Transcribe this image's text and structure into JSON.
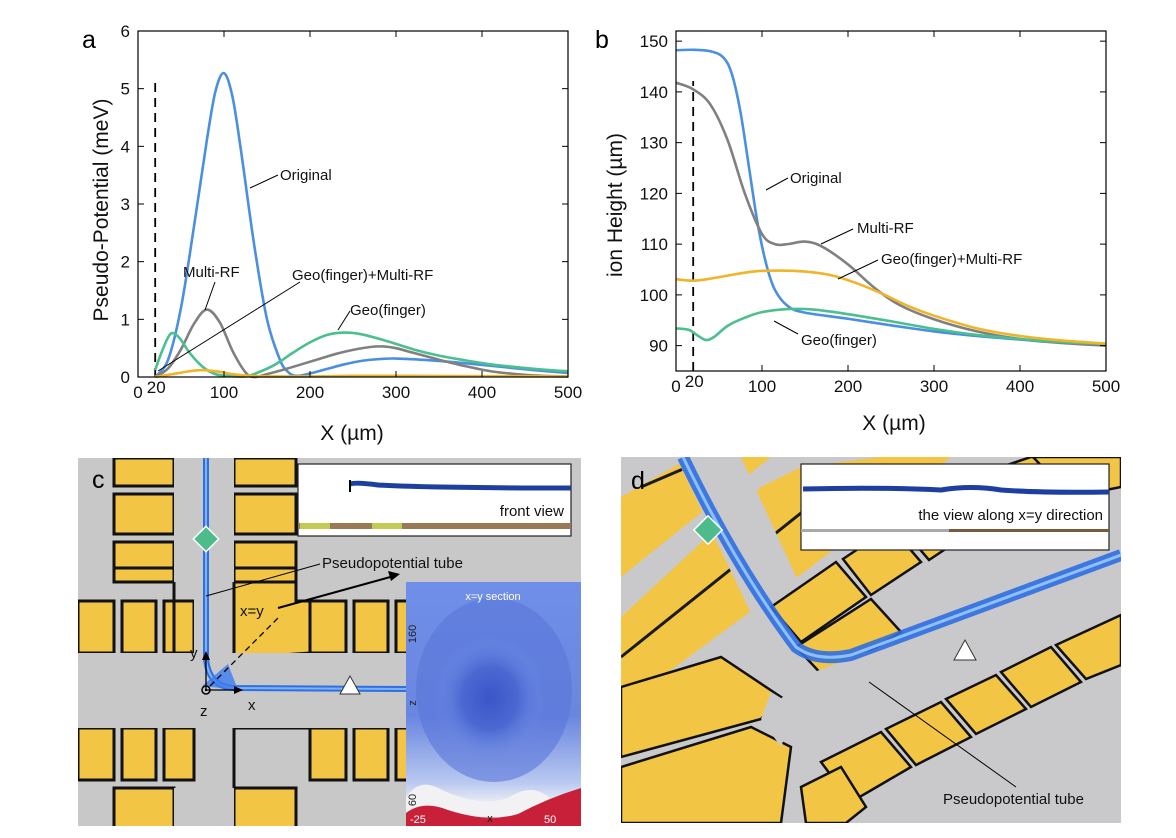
{
  "panel_a": {
    "label": "a",
    "chart_data": {
      "type": "line",
      "xlabel": "X (µm)",
      "ylabel": "Pseudo-Potential (meV)",
      "xlim": [
        0,
        500
      ],
      "ylim": [
        0,
        6
      ],
      "xticks": [
        0,
        100,
        200,
        300,
        400,
        500
      ],
      "yticks": [
        0,
        1,
        2,
        3,
        4,
        5,
        6
      ],
      "marker_x": 20,
      "marker_label": "20",
      "series": [
        {
          "name": "Original",
          "color": "#4a8fe0",
          "points": [
            [
              20,
              0
            ],
            [
              35,
              0.3
            ],
            [
              50,
              1.2
            ],
            [
              65,
              2.6
            ],
            [
              80,
              4.1
            ],
            [
              90,
              4.95
            ],
            [
              100,
              5.27
            ],
            [
              110,
              4.85
            ],
            [
              120,
              3.9
            ],
            [
              135,
              2.3
            ],
            [
              150,
              1.0
            ],
            [
              165,
              0.3
            ],
            [
              175,
              0.08
            ],
            [
              185,
              0.02
            ],
            [
              200,
              0.06
            ],
            [
              220,
              0.14
            ],
            [
              240,
              0.22
            ],
            [
              260,
              0.28
            ],
            [
              280,
              0.31
            ],
            [
              300,
              0.32
            ],
            [
              340,
              0.29
            ],
            [
              380,
              0.24
            ],
            [
              420,
              0.18
            ],
            [
              460,
              0.12
            ],
            [
              500,
              0.07
            ]
          ]
        },
        {
          "name": "Multi-RF",
          "color": "#808080",
          "points": [
            [
              20,
              0
            ],
            [
              35,
              0.15
            ],
            [
              50,
              0.48
            ],
            [
              65,
              0.92
            ],
            [
              80,
              1.17
            ],
            [
              95,
              0.95
            ],
            [
              110,
              0.45
            ],
            [
              125,
              0.08
            ],
            [
              135,
              0
            ],
            [
              150,
              0.05
            ],
            [
              170,
              0.13
            ],
            [
              190,
              0.22
            ],
            [
              210,
              0.31
            ],
            [
              230,
              0.4
            ],
            [
              250,
              0.47
            ],
            [
              270,
              0.52
            ],
            [
              285,
              0.53
            ],
            [
              300,
              0.5
            ],
            [
              320,
              0.42
            ],
            [
              350,
              0.3
            ],
            [
              380,
              0.19
            ],
            [
              410,
              0.1
            ],
            [
              440,
              0.05
            ],
            [
              470,
              0.02
            ],
            [
              500,
              0.01
            ]
          ]
        },
        {
          "name": "Geo(finger)",
          "color": "#4bbf8e",
          "points": [
            [
              20,
              0.12
            ],
            [
              28,
              0.45
            ],
            [
              38,
              0.75
            ],
            [
              48,
              0.68
            ],
            [
              60,
              0.42
            ],
            [
              75,
              0.18
            ],
            [
              90,
              0.05
            ],
            [
              105,
              0.02
            ],
            [
              125,
              0.01
            ],
            [
              140,
              0.08
            ],
            [
              160,
              0.22
            ],
            [
              180,
              0.42
            ],
            [
              200,
              0.6
            ],
            [
              220,
              0.73
            ],
            [
              240,
              0.77
            ],
            [
              260,
              0.74
            ],
            [
              290,
              0.62
            ],
            [
              320,
              0.48
            ],
            [
              350,
              0.37
            ],
            [
              380,
              0.29
            ],
            [
              410,
              0.22
            ],
            [
              440,
              0.17
            ],
            [
              470,
              0.13
            ],
            [
              500,
              0.1
            ]
          ]
        },
        {
          "name": "Geo(finger)+Multi-RF",
          "color": "#f0b429",
          "points": [
            [
              20,
              0
            ],
            [
              40,
              0.05
            ],
            [
              60,
              0.1
            ],
            [
              75,
              0.12
            ],
            [
              95,
              0.09
            ],
            [
              110,
              0.05
            ],
            [
              130,
              0.02
            ],
            [
              150,
              0.01
            ],
            [
              200,
              0.01
            ],
            [
              250,
              0.02
            ],
            [
              300,
              0.02
            ],
            [
              400,
              0.015
            ],
            [
              500,
              0.01
            ]
          ]
        }
      ]
    },
    "annotations": {
      "original": "Original",
      "multirf": "Multi-RF",
      "geofinger": "Geo(finger)",
      "geomulti": "Geo(finger)+Multi-RF"
    }
  },
  "panel_b": {
    "label": "b",
    "chart_data": {
      "type": "line",
      "xlabel": "X (µm)",
      "ylabel": "ion Height (µm)",
      "xlim": [
        0,
        500
      ],
      "ylim": [
        85,
        152
      ],
      "xticks": [
        0,
        100,
        200,
        300,
        400,
        500
      ],
      "yticks": [
        90,
        100,
        110,
        120,
        130,
        140,
        150
      ],
      "marker_x": 20,
      "marker_label": "20",
      "series": [
        {
          "name": "Original",
          "color": "#4a8fe0",
          "points": [
            [
              0,
              148.2
            ],
            [
              20,
              148.3
            ],
            [
              40,
              148
            ],
            [
              55,
              146.8
            ],
            [
              65,
              143.5
            ],
            [
              75,
              136
            ],
            [
              85,
              125
            ],
            [
              95,
              114
            ],
            [
              105,
              106
            ],
            [
              115,
              101
            ],
            [
              130,
              97.8
            ],
            [
              150,
              96.5
            ],
            [
              200,
              95.3
            ],
            [
              250,
              94
            ],
            [
              300,
              92.8
            ],
            [
              350,
              91.9
            ],
            [
              400,
              91.2
            ],
            [
              450,
              90.6
            ],
            [
              500,
              90.2
            ]
          ]
        },
        {
          "name": "Multi-RF",
          "color": "#808080",
          "points": [
            [
              0,
              141.8
            ],
            [
              20,
              140.5
            ],
            [
              40,
              137.5
            ],
            [
              60,
              130.5
            ],
            [
              80,
              120
            ],
            [
              100,
              112
            ],
            [
              115,
              110
            ],
            [
              130,
              110
            ],
            [
              150,
              110.5
            ],
            [
              170,
              109.5
            ],
            [
              200,
              106
            ],
            [
              230,
              101.5
            ],
            [
              260,
              98
            ],
            [
              300,
              95.2
            ],
            [
              350,
              92.8
            ],
            [
              400,
              91.3
            ],
            [
              450,
              90.5
            ],
            [
              500,
              90
            ]
          ]
        },
        {
          "name": "Geo(finger)",
          "color": "#4bbf8e",
          "points": [
            [
              0,
              93.4
            ],
            [
              15,
              93.1
            ],
            [
              25,
              92
            ],
            [
              35,
              91.1
            ],
            [
              45,
              91.8
            ],
            [
              60,
              93.9
            ],
            [
              80,
              95.5
            ],
            [
              100,
              96.6
            ],
            [
              130,
              97.2
            ],
            [
              160,
              97.1
            ],
            [
              200,
              96.2
            ],
            [
              250,
              94.8
            ],
            [
              300,
              93.3
            ],
            [
              350,
              92.1
            ],
            [
              400,
              91.3
            ],
            [
              450,
              90.7
            ],
            [
              500,
              90.3
            ]
          ]
        },
        {
          "name": "Geo(finger)+Multi-RF",
          "color": "#f0b429",
          "points": [
            [
              0,
              103.1
            ],
            [
              20,
              102.8
            ],
            [
              40,
              103.2
            ],
            [
              60,
              103.8
            ],
            [
              90,
              104.6
            ],
            [
              120,
              104.8
            ],
            [
              150,
              104.6
            ],
            [
              180,
              103.9
            ],
            [
              210,
              102.3
            ],
            [
              240,
              100.2
            ],
            [
              270,
              97.8
            ],
            [
              300,
              95.9
            ],
            [
              350,
              93.4
            ],
            [
              400,
              91.9
            ],
            [
              450,
              91
            ],
            [
              500,
              90.4
            ]
          ]
        }
      ]
    },
    "annotations": {
      "original": "Original",
      "multirf": "Multi-RF",
      "geofinger": "Geo(finger)",
      "geomulti": "Geo(finger)+Multi-RF"
    }
  },
  "panel_c": {
    "label": "c",
    "inset_front_label": "front view",
    "tube_label": "Pseudopotential tube",
    "diag_label": "x=y",
    "axis_y": "y",
    "axis_x": "x",
    "axis_z": "z",
    "section": {
      "title": "x=y section",
      "zlabel": "z",
      "xlabel": "x",
      "ytick_top": "160",
      "ytick_bottom": "60",
      "xtick_left": "-25",
      "xtick_right": "50"
    }
  },
  "panel_d": {
    "label": "d",
    "inset_label": "the view along x=y direction",
    "tube_label": "Pseudopotential tube"
  },
  "colors": {
    "gold": "#f2c544",
    "gold_dark": "#d9a521",
    "chip_gray": "#c8c8c8",
    "tube_blue": "#2f6fe0",
    "diamond_green": "#4dbb8a"
  }
}
